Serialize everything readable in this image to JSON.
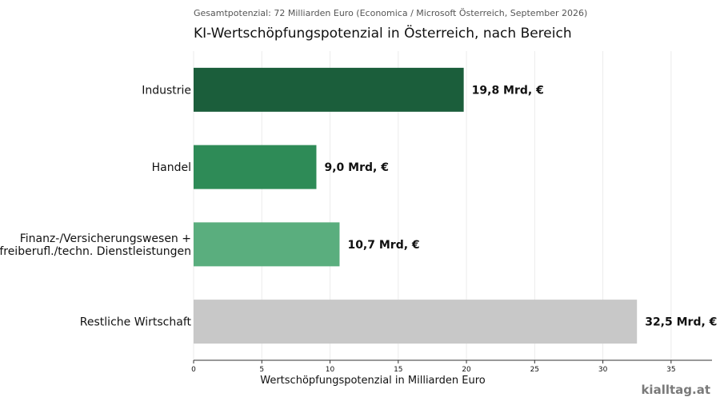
{
  "chart_data": {
    "type": "bar",
    "orientation": "horizontal",
    "subtitle": "Gesamtpotenzial: 72 Milliarden Euro (Economica / Microsoft Österreich, September 2026)",
    "title": "KI-Wertschöpfungspotenzial in Österreich, nach Bereich",
    "xlabel": "Wertschöpfungspotenzial in Milliarden Euro",
    "ylabel": "",
    "xlim": [
      0,
      38
    ],
    "xticks": [
      0,
      5,
      10,
      15,
      20,
      25,
      30,
      35
    ],
    "grid": "vertical",
    "categories": [
      [
        "Industrie"
      ],
      [
        "Handel"
      ],
      [
        "Finanz-/Versicherungswesen +",
        "freiberufl./techn. Dienstleistungen"
      ],
      [
        "Restliche Wirtschaft"
      ]
    ],
    "values": [
      19.8,
      9.0,
      10.7,
      32.5
    ],
    "value_labels": [
      "19,8 Mrd, €",
      "9,0 Mrd, €",
      "10,7 Mrd, €",
      "32,5 Mrd, €"
    ],
    "colors": [
      "#1b5e3b",
      "#2e8b57",
      "#5aae7e",
      "#c8c8c8"
    ]
  },
  "watermark": "kialltag.at"
}
